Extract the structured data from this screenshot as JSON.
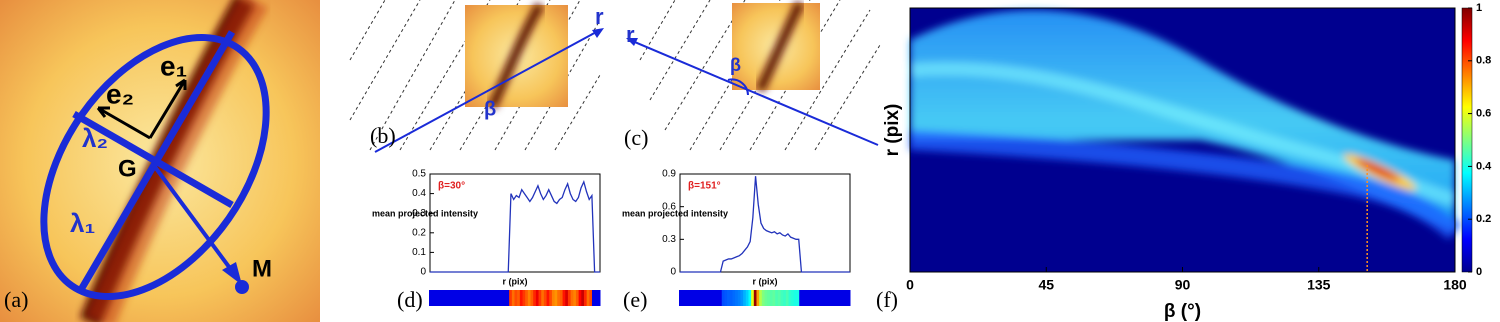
{
  "panels": {
    "labels": [
      "(a)",
      "(b)",
      "(c)",
      "(d)",
      "(e)",
      "(f)"
    ],
    "a": {
      "e1": "e₁",
      "e2": "e₂",
      "lambda2": "λ₂",
      "lambda1": "λ₁",
      "G": "G",
      "M": "M"
    },
    "b": {
      "r": "r",
      "beta": "β"
    },
    "c": {
      "r": "r",
      "beta": "β"
    }
  },
  "chart_data": [
    {
      "type": "line",
      "ylabel": "mean projected intensity",
      "xlabel": "r (pix)",
      "annotation": "β=30°",
      "color": "#2233bb",
      "ylim": [
        0,
        0.5
      ],
      "yticks": [
        0,
        0.1,
        0.2,
        0.3,
        0.4,
        0.5
      ],
      "values": [
        0,
        0,
        0,
        0,
        0,
        0,
        0,
        0,
        0,
        0,
        0,
        0,
        0,
        0,
        0,
        0,
        0,
        0,
        0,
        0,
        0,
        0,
        0,
        0,
        0,
        0,
        0,
        0,
        0,
        0,
        0.4,
        0.37,
        0.39,
        0.38,
        0.42,
        0.4,
        0.38,
        0.36,
        0.38,
        0.41,
        0.44,
        0.4,
        0.37,
        0.39,
        0.42,
        0.39,
        0.36,
        0.35,
        0.37,
        0.38,
        0.42,
        0.45,
        0.4,
        0.37,
        0.36,
        0.38,
        0.43,
        0.46,
        0.41,
        0.37,
        0.39,
        0,
        0,
        0
      ]
    },
    {
      "type": "line",
      "ylabel": "mean projected intensity",
      "xlabel": "r (pix)",
      "annotation": "β=151°",
      "color": "#2233bb",
      "ylim": [
        0,
        0.9
      ],
      "yticks": [
        0,
        0.3,
        0.6,
        0.9
      ],
      "values": [
        0,
        0,
        0,
        0,
        0,
        0,
        0,
        0,
        0,
        0,
        0,
        0,
        0,
        0,
        0,
        0,
        0.1,
        0.11,
        0.12,
        0.12,
        0.13,
        0.14,
        0.15,
        0.17,
        0.2,
        0.23,
        0.28,
        0.5,
        0.88,
        0.62,
        0.45,
        0.4,
        0.38,
        0.37,
        0.36,
        0.37,
        0.35,
        0.36,
        0.34,
        0.33,
        0.35,
        0.32,
        0.31,
        0.3,
        0.3,
        0,
        0,
        0,
        0,
        0,
        0,
        0,
        0,
        0,
        0,
        0,
        0,
        0,
        0,
        0,
        0,
        0,
        0,
        0
      ]
    },
    {
      "type": "heatmap",
      "xlabel": "β (°)",
      "ylabel": "r (pix)",
      "xlim": [
        0,
        180
      ],
      "xticks": [
        0,
        45,
        90,
        135,
        180
      ],
      "clim": [
        0,
        1
      ],
      "cticks": [
        0,
        0.2,
        0.4,
        0.6,
        0.8,
        1
      ],
      "marker_beta": 151
    }
  ]
}
